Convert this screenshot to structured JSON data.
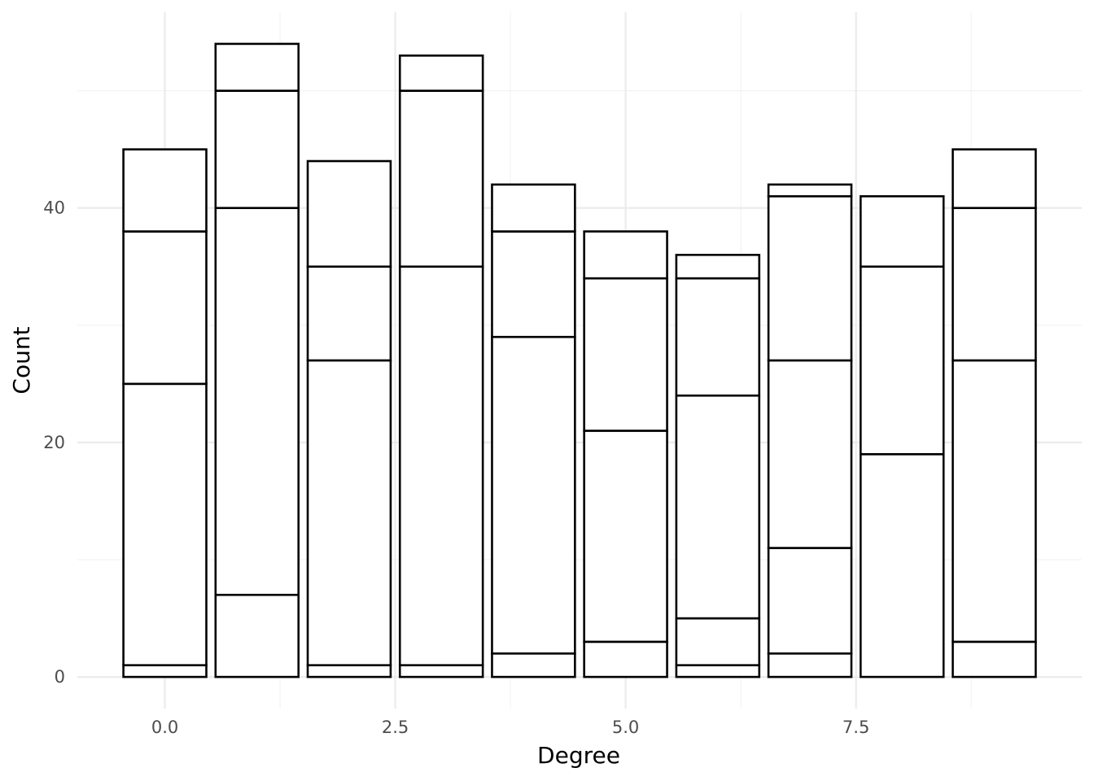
{
  "chart_data": {
    "type": "bar",
    "stacked": true,
    "xlabel": "Degree",
    "ylabel": "Count",
    "x": [
      0,
      1,
      2,
      3,
      4,
      5,
      6,
      7,
      8,
      9
    ],
    "xlim": [
      -0.95,
      9.95
    ],
    "ylim": [
      -2.7,
      56.7
    ],
    "x_ticks": [
      {
        "value": 0,
        "label": "0.0"
      },
      {
        "value": 2.5,
        "label": "2.5"
      },
      {
        "value": 5,
        "label": "5.0"
      },
      {
        "value": 7.5,
        "label": "7.5"
      }
    ],
    "y_ticks": [
      {
        "value": 0,
        "label": "0"
      },
      {
        "value": 20,
        "label": "20"
      },
      {
        "value": 40,
        "label": "40"
      }
    ],
    "segment_boundaries": [
      [
        0,
        1,
        25,
        38,
        45
      ],
      [
        0,
        7,
        40,
        50,
        54
      ],
      [
        0,
        1,
        27,
        35,
        44
      ],
      [
        0,
        1,
        35,
        50,
        53
      ],
      [
        0,
        2,
        29,
        38,
        42
      ],
      [
        0,
        3,
        21,
        34,
        38
      ],
      [
        0,
        1,
        5,
        24,
        34,
        36
      ],
      [
        0,
        2,
        11,
        27,
        41,
        42
      ],
      [
        0,
        19,
        35,
        41
      ],
      [
        0,
        3,
        27,
        40,
        45
      ]
    ],
    "grid": true,
    "legend": "none",
    "fill_color": "#ffffff",
    "outline_color": "#000000"
  }
}
